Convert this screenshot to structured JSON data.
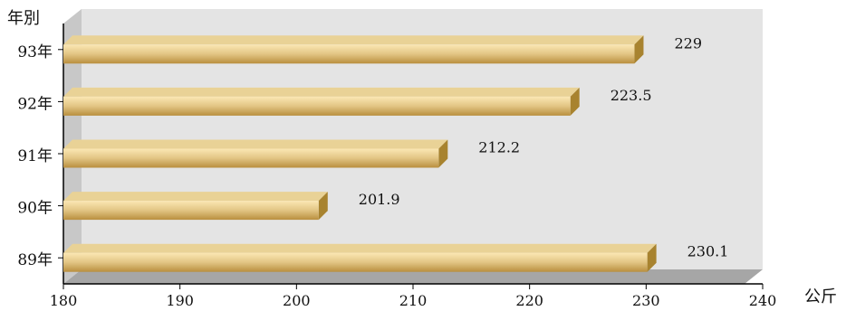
{
  "chart_data": {
    "type": "bar",
    "orientation": "horizontal",
    "ylabel": "年別",
    "xunit": "公斤",
    "categories": [
      "93年",
      "92年",
      "91年",
      "90年",
      "89年"
    ],
    "values": [
      229,
      223.5,
      212.2,
      201.9,
      230.1
    ],
    "value_labels": [
      "229",
      "223.5",
      "212.2",
      "201.9",
      "230.1"
    ],
    "xlim": [
      180,
      240
    ],
    "xticks": [
      180,
      190,
      200,
      210,
      220,
      230,
      240
    ],
    "xtick_labels": [
      "180",
      "190",
      "200",
      "210",
      "220",
      "230",
      "240"
    ],
    "grid": false,
    "style": "3d",
    "colors": {
      "bar_front_light": "#fbe7b4",
      "bar_front_mid": "#e2c584",
      "bar_front_dark": "#b98f3e",
      "bar_top": "#e9d296",
      "bar_side": "#a8832f",
      "wall": "#e4e4e4",
      "floor": "#a6a6a6",
      "left_wall": "#c8c8c8"
    }
  }
}
